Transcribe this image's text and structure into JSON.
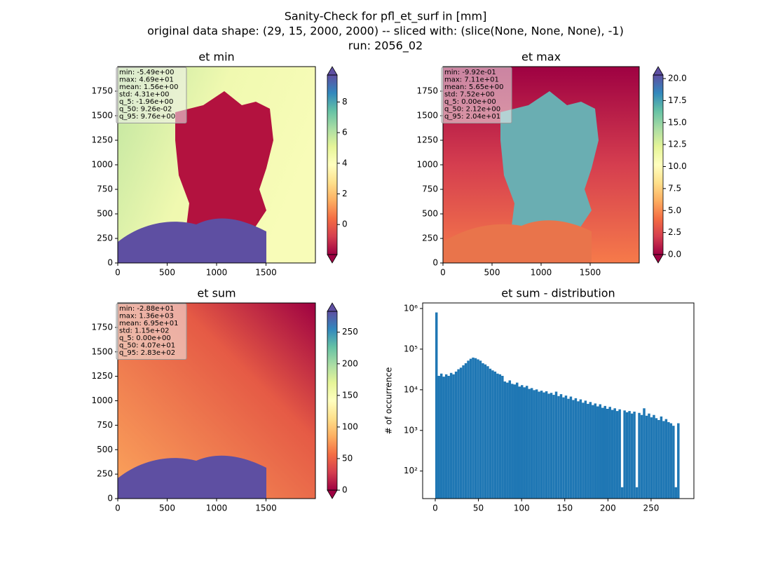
{
  "suptitle": [
    "Sanity-Check for pfl_et_surf in [mm]",
    "original data shape: (29, 15, 2000, 2000) -- sliced with: (slice(None, None, None), -1)",
    "run: 2056_02"
  ],
  "chart_data": [
    {
      "type": "heatmap",
      "title": "et min",
      "xlim": [
        0,
        2000
      ],
      "ylim": [
        0,
        2000
      ],
      "xticks": [
        0,
        500,
        1000,
        1500
      ],
      "yticks": [
        0,
        250,
        500,
        750,
        1000,
        1250,
        1500,
        1750
      ],
      "clim": [
        -1.96,
        9.76
      ],
      "cticks": [
        0,
        2,
        4,
        6,
        8
      ],
      "stats": [
        "min: -5.49e+00",
        "max: 4.69e+01",
        "mean: 1.56e+00",
        "std: 4.31e+00",
        "q_5: -1.96e+00",
        "q_50: 9.26e-02",
        "q_95: 9.76e+00"
      ]
    },
    {
      "type": "heatmap",
      "title": "et max",
      "xlim": [
        0,
        2000
      ],
      "ylim": [
        0,
        2000
      ],
      "xticks": [
        0,
        500,
        1000,
        1500
      ],
      "yticks": [
        0,
        250,
        500,
        750,
        1000,
        1250,
        1500,
        1750
      ],
      "clim": [
        0,
        20.4
      ],
      "cticks": [
        {
          "value": 0,
          "label": "0.0"
        },
        {
          "value": 2.5,
          "label": "2.5"
        },
        {
          "value": 5,
          "label": "5.0"
        },
        {
          "value": 7.5,
          "label": "7.5"
        },
        {
          "value": 10,
          "label": "10.0"
        },
        {
          "value": 12.5,
          "label": "12.5"
        },
        {
          "value": 15,
          "label": "15.0"
        },
        {
          "value": 17.5,
          "label": "17.5"
        },
        {
          "value": 20,
          "label": "20.0"
        }
      ],
      "stats": [
        "min: -9.92e-01",
        "max: 7.11e+01",
        "mean: 5.65e+00",
        "std: 7.52e+00",
        "q_5: 0.00e+00",
        "q_50: 2.12e+00",
        "q_95: 2.04e+01"
      ]
    },
    {
      "type": "heatmap",
      "title": "et sum",
      "xlim": [
        0,
        2000
      ],
      "ylim": [
        0,
        2000
      ],
      "xticks": [
        0,
        500,
        1000,
        1500
      ],
      "yticks": [
        0,
        250,
        500,
        750,
        1000,
        1250,
        1500,
        1750
      ],
      "clim": [
        0,
        283
      ],
      "cticks": [
        0,
        50,
        100,
        150,
        200,
        250
      ],
      "stats": [
        "min: -2.88e+01",
        "max: 1.36e+03",
        "mean: 6.95e+01",
        "std: 1.15e+02",
        "q_5: 0.00e+00",
        "q_50: 4.07e+01",
        "q_95: 2.83e+02"
      ]
    },
    {
      "type": "histogram",
      "title": "et sum - distribution",
      "ylabel": "# of occurrence",
      "color": "#1f77b4",
      "log_y": true,
      "xlim": [
        -14.6,
        299.6
      ],
      "xticks": [
        0,
        50,
        100,
        150,
        200,
        250
      ],
      "ylim": [
        21,
        1370000
      ],
      "yticks": [
        {
          "value": 100,
          "label": "10²"
        },
        {
          "value": 1000,
          "label": "10³"
        },
        {
          "value": 10000,
          "label": "10⁴"
        },
        {
          "value": 100000,
          "label": "10⁵"
        },
        {
          "value": 1000000,
          "label": "10⁶"
        }
      ],
      "bins": [
        0,
        2.83,
        5.66,
        8.49,
        11.32,
        14.15,
        16.98,
        19.81,
        22.64,
        25.47,
        28.3,
        31.13,
        33.96,
        36.79,
        39.62,
        42.45,
        45.28,
        48.11,
        50.94,
        53.77,
        56.6,
        59.43,
        62.26,
        65.09,
        67.92,
        70.75,
        73.58,
        76.41,
        79.24,
        82.07,
        84.9,
        87.73,
        90.56,
        93.39,
        96.22,
        99.05,
        101.88,
        104.71,
        107.54,
        110.37,
        113.2,
        116.03,
        118.86,
        121.69,
        124.52,
        127.35,
        130.18,
        133.01,
        135.84,
        138.67,
        141.5,
        144.33,
        147.16,
        149.99,
        152.82,
        155.65,
        158.48,
        161.31,
        164.14,
        166.97,
        169.8,
        172.63,
        175.46,
        178.29,
        181.12,
        183.95,
        186.78,
        189.61,
        192.44,
        195.27,
        198.1,
        200.93,
        203.76,
        206.59,
        209.42,
        212.25,
        215.08,
        217.91,
        220.74,
        223.57,
        226.4,
        229.23,
        232.06,
        234.89,
        237.72,
        240.55,
        243.38,
        246.21,
        249.04,
        251.87,
        254.7,
        257.53,
        260.36,
        263.19,
        266.02,
        268.85,
        271.68,
        274.51,
        277.34,
        280.17,
        283
      ],
      "values": [
        800000,
        22000,
        25000,
        21000,
        24000,
        22000,
        26000,
        24000,
        28000,
        32000,
        35000,
        40000,
        45000,
        52000,
        58000,
        62000,
        60000,
        56000,
        52000,
        45000,
        42000,
        38000,
        33000,
        30000,
        28000,
        25000,
        24000,
        22000,
        16000,
        15000,
        17000,
        14000,
        13500,
        15000,
        12000,
        13000,
        11500,
        12500,
        10500,
        11000,
        9800,
        10200,
        9000,
        9500,
        8600,
        9200,
        8000,
        8400,
        7500,
        9000,
        7000,
        7800,
        6500,
        7200,
        6000,
        6800,
        5600,
        6200,
        5200,
        5800,
        4800,
        5400,
        4500,
        5000,
        4200,
        4600,
        3900,
        4400,
        3600,
        4000,
        3400,
        3800,
        3200,
        3500,
        3000,
        3300,
        40,
        3100,
        2800,
        3000,
        2600,
        2900,
        40,
        2700,
        2400,
        3500,
        2300,
        2600,
        2100,
        2400,
        2000,
        1800,
        2200,
        1700,
        1900,
        1600,
        1500,
        1300,
        40,
        1500
      ]
    }
  ]
}
